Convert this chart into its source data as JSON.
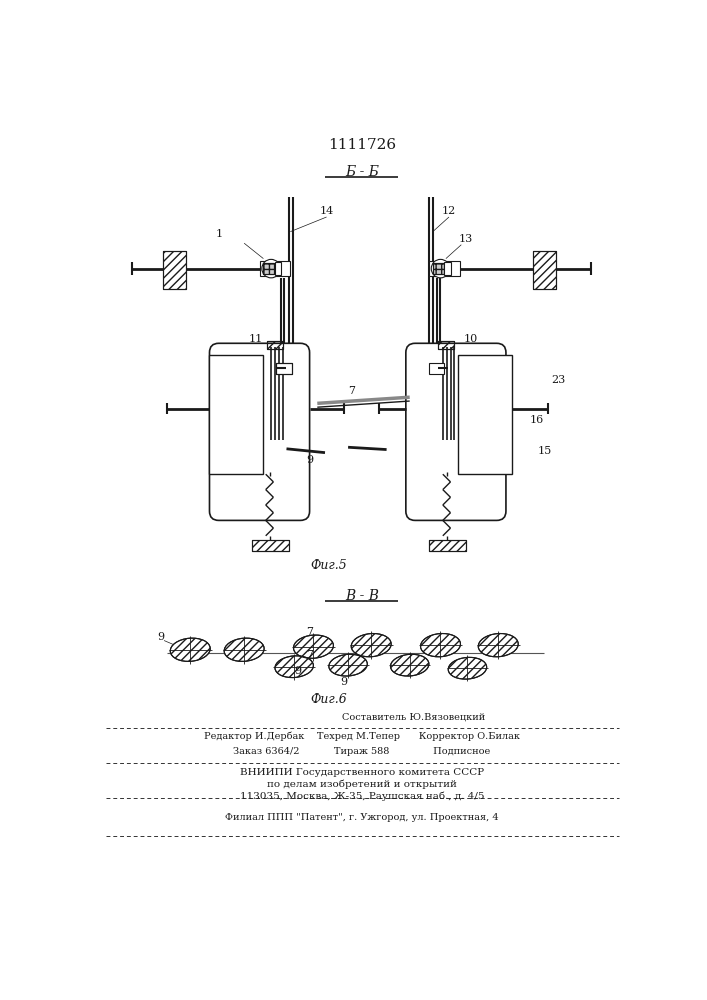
{
  "patent_number": "1111726",
  "fig5_label": "Б - Б",
  "fig5_caption": "Фиг.5",
  "fig6_label": "В - В",
  "fig6_caption": "Фиг.6",
  "bg_color": "#ffffff",
  "line_color": "#1a1a1a",
  "footer_line1": "Составитель Ю.Вязовецкий",
  "footer_line2": "Редактор И.Дербак    Техред М.Тепер      Корректор О.Билак",
  "footer_line3": "Заказ 6364/2           Тираж 588              Подписное",
  "footer_line4": "ВНИИПИ Государственного комитета СССР",
  "footer_line5": "по делам изобретений и открытий",
  "footer_line6": "113035, Москва, Ж-35, Раушская наб., д. 4/5",
  "footer_line7": "Филиал ППП \"Патент\", г. Ужгород, ул. Проектная, 4"
}
